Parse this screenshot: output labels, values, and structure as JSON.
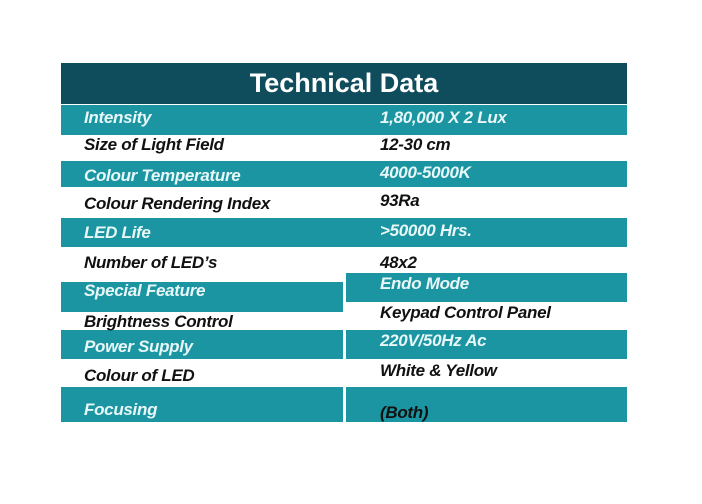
{
  "title": "Technical Data",
  "colors": {
    "header": "#0f4c5c",
    "band": "#1a95a1"
  },
  "rows": [
    {
      "label": "Intensity",
      "value": "1,80,000 X 2 Lux"
    },
    {
      "label": "Size of Light Field",
      "value": "12-30 cm"
    },
    {
      "label": "Colour Temperature",
      "value": "4000-5000K"
    },
    {
      "label": "Colour Rendering Index",
      "value": "93Ra"
    },
    {
      "label": "LED Life",
      "value": ">50000 Hrs."
    },
    {
      "label": "Number of LED’s",
      "value": "48x2"
    },
    {
      "label": "Special Feature",
      "value": "Endo Mode"
    },
    {
      "label": "Brightness Control",
      "value": "Keypad Control Panel"
    },
    {
      "label": "Power Supply",
      "value": "220V/50Hz Ac"
    },
    {
      "label": "Colour of LED",
      "value": "White & Yellow"
    },
    {
      "label": "Focusing",
      "value": "(Both)"
    }
  ]
}
